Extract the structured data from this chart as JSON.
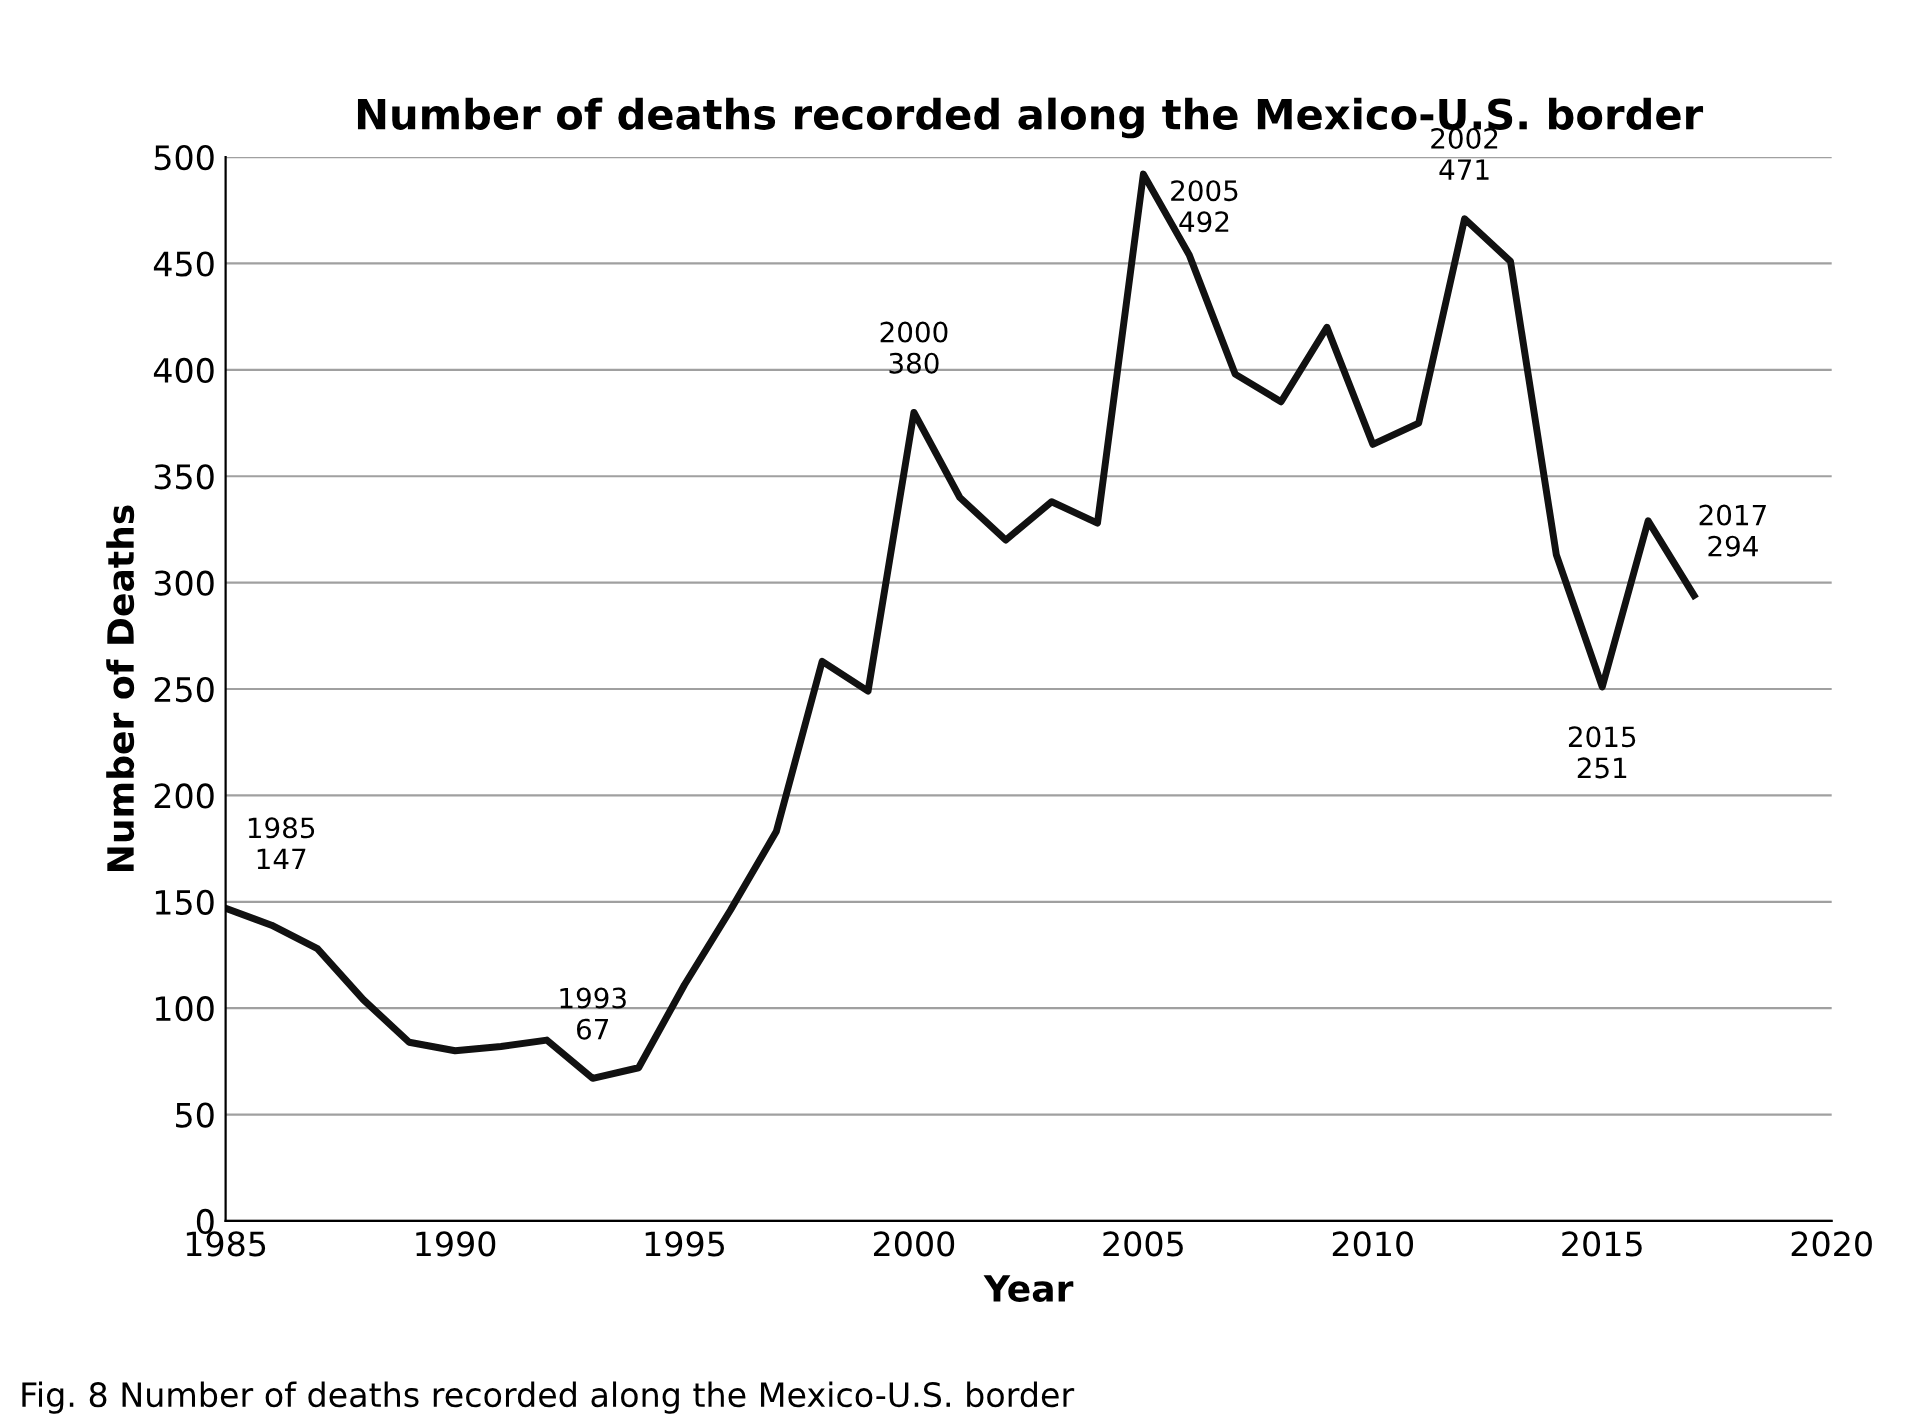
{
  "chart_data": {
    "type": "line",
    "title": "Number of deaths recorded along the Mexico-U.S. border",
    "xlabel": "Year",
    "ylabel": "Number of Deaths",
    "x": [
      1985,
      1986,
      1987,
      1988,
      1989,
      1990,
      1991,
      1992,
      1993,
      1994,
      1995,
      1996,
      1997,
      1998,
      1999,
      2000,
      2001,
      2002,
      2003,
      2004,
      2005,
      2006,
      2007,
      2008,
      2009,
      2010,
      2011,
      2012,
      2013,
      2014,
      2015,
      2016,
      2017
    ],
    "series": [
      {
        "color": "#111111",
        "values": [
          147,
          139,
          128,
          104,
          84,
          80,
          82,
          85,
          67,
          72,
          111,
          146,
          183,
          263,
          249,
          380,
          340,
          320,
          338,
          328,
          492,
          454,
          398,
          385,
          420,
          365,
          375,
          471,
          451,
          313,
          251,
          329,
          294
        ]
      }
    ],
    "xlim": [
      1985,
      2020
    ],
    "xticks": [
      1985,
      1990,
      1995,
      2000,
      2005,
      2010,
      2015,
      2020
    ],
    "ylim": [
      0,
      500
    ],
    "yticks": [
      0,
      50,
      100,
      150,
      200,
      250,
      300,
      350,
      400,
      450,
      500
    ],
    "grid": "y",
    "marker": "none",
    "line_style": "solid",
    "legend": false,
    "annotations": [
      {
        "text": "1985\n147",
        "x": 1985,
        "y": 147
      },
      {
        "text": "1993\n67",
        "x": 1993,
        "y": 67
      },
      {
        "text": "2000\n380",
        "x": 2000,
        "y": 380
      },
      {
        "text": "2005\n492",
        "x": 2005,
        "y": 492
      },
      {
        "text": "2002\n471",
        "x": 2012,
        "y": 471
      },
      {
        "text": "2015\n251",
        "x": 2015,
        "y": 251
      },
      {
        "text": "2017\n294",
        "x": 2017,
        "y": 294
      },
      "Fig. 8 Number of deaths recorded along the Mexico-U.S. border"
    ]
  }
}
